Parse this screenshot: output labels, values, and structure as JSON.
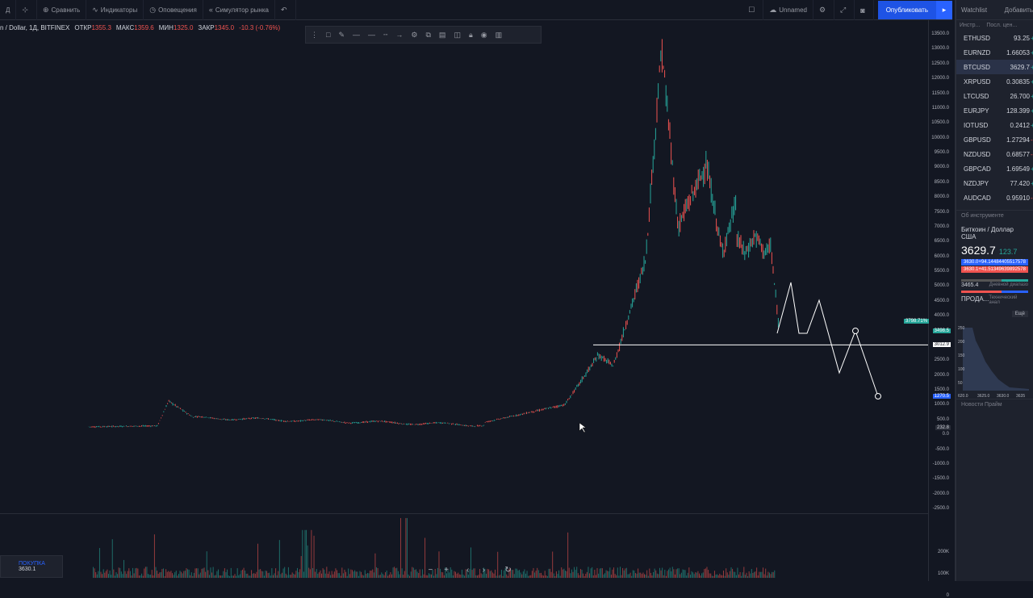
{
  "topbar": {
    "items": [
      "Д",
      "Сравнить",
      "Индикаторы",
      "Оповещения",
      "Симулятор рынка"
    ],
    "layout_name": "Unnamed",
    "publish_label": "Опубликовать"
  },
  "legend": {
    "symbol": "n / Dollar, 1Д, BITFINEX",
    "open_label": "ОТКР",
    "open": "1355.3",
    "high_label": "МАКС",
    "high": "1359.6",
    "low_label": "МИН",
    "low": "1325.0",
    "close_label": "ЗАКР",
    "close": "1345.0",
    "change": "-10.3 (-0.76%)"
  },
  "price_axis": {
    "ticks": [
      "13500.0",
      "13000.0",
      "12500.0",
      "12000.0",
      "11500.0",
      "11000.0",
      "10500.0",
      "10000.0",
      "9500.0",
      "9000.0",
      "8500.0",
      "8000.0",
      "7500.0",
      "7000.0",
      "6500.0",
      "6000.0",
      "5500.0",
      "5000.0",
      "4500.0",
      "4000.0",
      "3500.0",
      "3000.0",
      "2500.0",
      "2000.0",
      "1500.0",
      "1000.0",
      "500.0",
      "0.0",
      "-500.0",
      "-1000.0",
      "-1500.0",
      "-2000.0",
      "-2500.0"
    ],
    "tag_percent": "3798.71%",
    "tag_price": "3498.5",
    "tag_line": "3012.9",
    "tag_blue": "1270.5",
    "tag_zero": "232.8",
    "vol_ticks": [
      "200K",
      "100K",
      "0"
    ]
  },
  "watchlist": {
    "title": "Watchlist",
    "add_label": "Добавить",
    "col_instrument": "Инстр...",
    "col_price": "Посл. цен...",
    "rows": [
      {
        "sym": "ETHUSD",
        "price": "93.25",
        "chg": "+",
        "dir": "up"
      },
      {
        "sym": "EURNZD",
        "price": "1.66053",
        "chg": "+0.0",
        "dir": "up"
      },
      {
        "sym": "BTCUSD",
        "price": "3629.7",
        "chg": "+1",
        "dir": "up"
      },
      {
        "sym": "XRPUSD",
        "price": "0.30835",
        "chg": "+0.0",
        "dir": "up"
      },
      {
        "sym": "LTCUSD",
        "price": "26.700",
        "chg": "+1",
        "dir": "up"
      },
      {
        "sym": "EURJPY",
        "price": "128.399",
        "chg": "+0",
        "dir": "up"
      },
      {
        "sym": "IOTUSD",
        "price": "0.2412",
        "chg": "+0.0",
        "dir": "up"
      },
      {
        "sym": "GBPUSD",
        "price": "1.27294",
        "chg": "-0.0",
        "dir": "dn"
      },
      {
        "sym": "NZDUSD",
        "price": "0.68577",
        "chg": "-0.0",
        "dir": "dn"
      },
      {
        "sym": "GBPCAD",
        "price": "1.69549",
        "chg": "+0.0",
        "dir": "up"
      },
      {
        "sym": "NZDJPY",
        "price": "77.420",
        "chg": "+0",
        "dir": "up"
      },
      {
        "sym": "AUDCAD",
        "price": "0.95910",
        "chg": "-0.0",
        "dir": "dn"
      }
    ],
    "about_label": "Об инструменте",
    "name": "Биткоин / Доллар США",
    "last": "3629.7",
    "change": "123.7",
    "bid_text": "3630.0+94.14484405517578",
    "ask_text": "3630.1+41.51349639892578",
    "day_low": "3465.4",
    "day_range_label": "Дневной диапазо",
    "sell_label": "ПРОДА...",
    "tech_label": "Технический анал",
    "more_label": "Ещё",
    "depth_ticks": [
      "250",
      "200",
      "150",
      "100",
      "50"
    ],
    "depth_x": [
      "620.0",
      "3625.0",
      "3630.0",
      "3635"
    ],
    "news_label": "Новости Прайм"
  },
  "order": {
    "label": "ПОКУПКА",
    "price": "3630.1"
  },
  "chart_data": {
    "type": "candlestick",
    "symbol": "BTCUSD",
    "ylim": [
      -2500,
      13700
    ],
    "grid": false,
    "horizontal_line": 3012.9
  }
}
